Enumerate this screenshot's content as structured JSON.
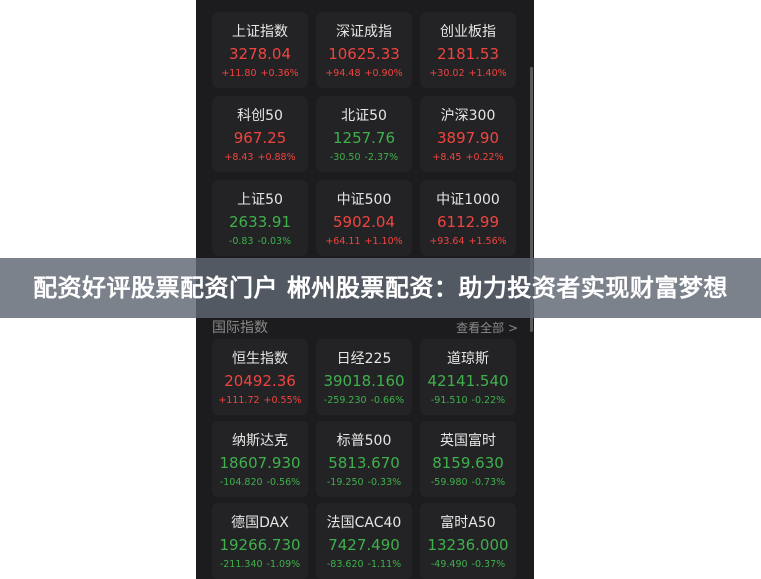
{
  "domestic": [
    {
      "name": "上证指数",
      "value": "3278.04",
      "change": "+11.80",
      "pct": "+0.36%",
      "dir": "up"
    },
    {
      "name": "深证成指",
      "value": "10625.33",
      "change": "+94.48",
      "pct": "+0.90%",
      "dir": "up"
    },
    {
      "name": "创业板指",
      "value": "2181.53",
      "change": "+30.02",
      "pct": "+1.40%",
      "dir": "up"
    },
    {
      "name": "科创50",
      "value": "967.25",
      "change": "+8.43",
      "pct": "+0.88%",
      "dir": "up"
    },
    {
      "name": "北证50",
      "value": "1257.76",
      "change": "-30.50",
      "pct": "-2.37%",
      "dir": "down"
    },
    {
      "name": "沪深300",
      "value": "3897.90",
      "change": "+8.45",
      "pct": "+0.22%",
      "dir": "up"
    },
    {
      "name": "上证50",
      "value": "2633.91",
      "change": "-0.83",
      "pct": "-0.03%",
      "dir": "down"
    },
    {
      "name": "中证500",
      "value": "5902.04",
      "change": "+64.11",
      "pct": "+1.10%",
      "dir": "up"
    },
    {
      "name": "中证1000",
      "value": "6112.99",
      "change": "+93.64",
      "pct": "+1.56%",
      "dir": "up"
    }
  ],
  "international_section": {
    "title": "国际指数",
    "more": "查看全部 >"
  },
  "international": [
    {
      "name": "恒生指数",
      "value": "20492.36",
      "change": "+111.72",
      "pct": "+0.55%",
      "dir": "up"
    },
    {
      "name": "日经225",
      "value": "39018.160",
      "change": "-259.230",
      "pct": "-0.66%",
      "dir": "down"
    },
    {
      "name": "道琼斯",
      "value": "42141.540",
      "change": "-91.510",
      "pct": "-0.22%",
      "dir": "down"
    },
    {
      "name": "纳斯达克",
      "value": "18607.930",
      "change": "-104.820",
      "pct": "-0.56%",
      "dir": "down"
    },
    {
      "name": "标普500",
      "value": "5813.670",
      "change": "-19.250",
      "pct": "-0.33%",
      "dir": "down"
    },
    {
      "name": "英国富时",
      "value": "8159.630",
      "change": "-59.980",
      "pct": "-0.73%",
      "dir": "down"
    },
    {
      "name": "德国DAX",
      "value": "19266.730",
      "change": "-211.340",
      "pct": "-1.09%",
      "dir": "down"
    },
    {
      "name": "法国CAC40",
      "value": "7427.490",
      "change": "-83.620",
      "pct": "-1.11%",
      "dir": "down"
    },
    {
      "name": "富时A50",
      "value": "13236.000",
      "change": "-49.490",
      "pct": "-0.37%",
      "dir": "down"
    }
  ],
  "colors": {
    "up": "#f0443f",
    "down": "#3fb04c"
  },
  "banner": "配资好评股票配资门户 郴州股票配资：助力投资者实现财富梦想"
}
